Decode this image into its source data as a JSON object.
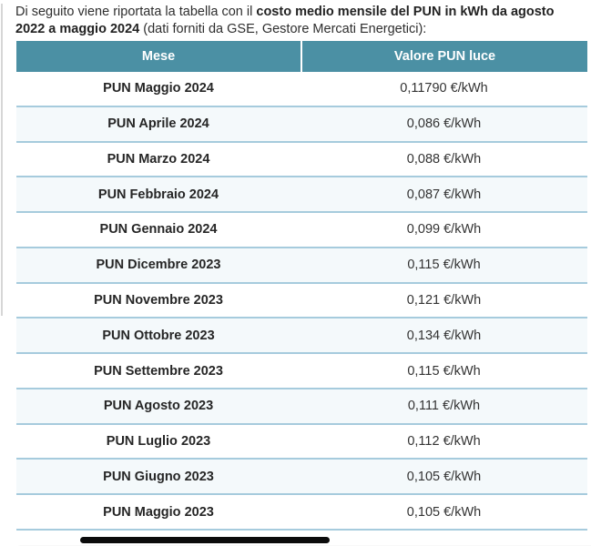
{
  "intro": {
    "text_before": "Di seguito viene riportata la tabella con il ",
    "text_bold": "costo medio mensile del PUN in kWh da agosto 2022 a maggio 2024",
    "text_after": " (dati forniti da GSE, Gestore Mercati Energetici):"
  },
  "table": {
    "columns": [
      "Mese",
      "Valore PUN luce"
    ],
    "rows": [
      {
        "mese": "PUN Maggio 2024",
        "valore": "0,11790 €/kWh"
      },
      {
        "mese": "PUN Aprile 2024",
        "valore": "0,086 €/kWh"
      },
      {
        "mese": "PUN Marzo 2024",
        "valore": "0,088 €/kWh"
      },
      {
        "mese": "PUN Febbraio 2024",
        "valore": "0,087 €/kWh"
      },
      {
        "mese": "PUN Gennaio 2024",
        "valore": "0,099 €/kWh"
      },
      {
        "mese": "PUN Dicembre 2023",
        "valore": "0,115 €/kWh"
      },
      {
        "mese": "PUN Novembre 2023",
        "valore": "0,121 €/kWh"
      },
      {
        "mese": "PUN Ottobre 2023",
        "valore": "0,134 €/kWh"
      },
      {
        "mese": "PUN Settembre 2023",
        "valore": "0,115 €/kWh"
      },
      {
        "mese": "PUN Agosto 2023",
        "valore": "0,111 €/kWh"
      },
      {
        "mese": "PUN Luglio 2023",
        "valore": "0,112 €/kWh"
      },
      {
        "mese": "PUN Giugno 2023",
        "valore": "0,105 €/kWh"
      },
      {
        "mese": "PUN Maggio 2023",
        "valore": "0,105 €/kWh"
      }
    ]
  },
  "colors": {
    "header_bg": "#4b90a4",
    "header_text": "#ffffff",
    "row_alt_bg": "#f4f9fb",
    "row_border": "#a6cbdd",
    "text": "#303030",
    "scrollbar_thumb": "#0b0b0b"
  }
}
